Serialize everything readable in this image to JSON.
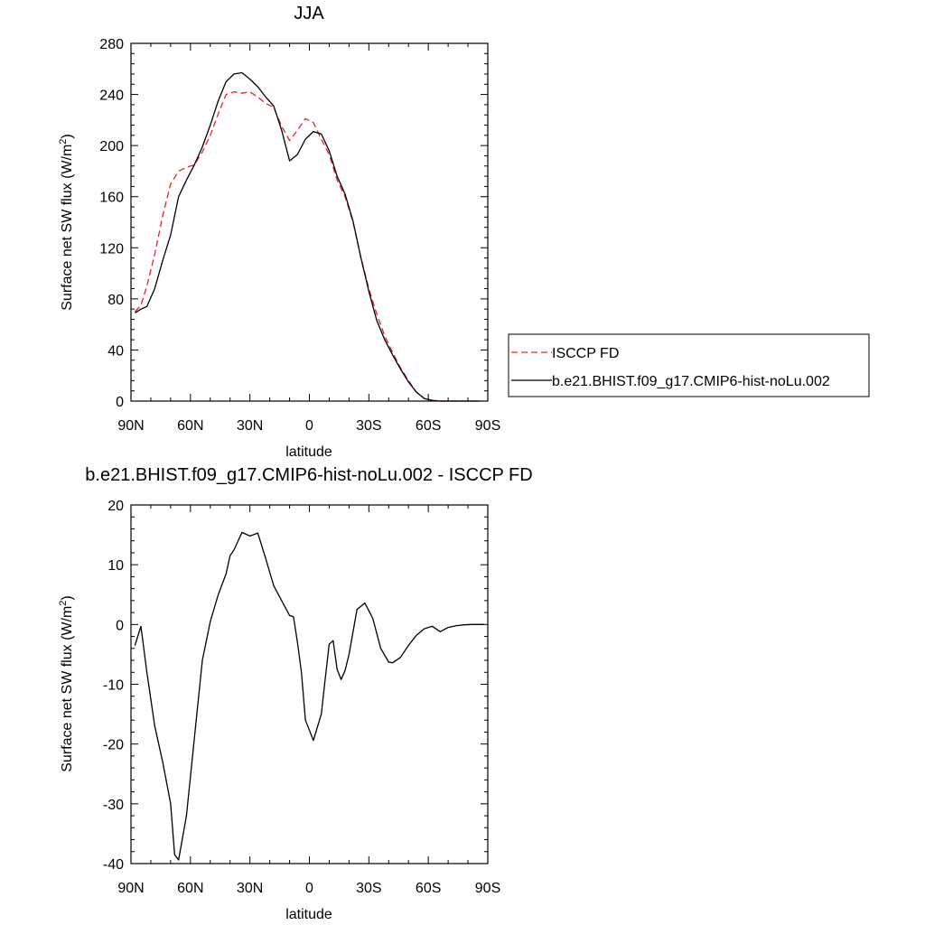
{
  "chart_data": [
    {
      "type": "line",
      "title": "JJA",
      "xlabel": "latitude",
      "ylabel": "Surface net SW flux (W/m",
      "ylabel_sup": "2",
      "ylabel_close": ")",
      "xlim": [
        90,
        -90
      ],
      "ylim": [
        0,
        280
      ],
      "xticks": [
        90,
        60,
        30,
        0,
        -30,
        -60,
        -90
      ],
      "xtick_labels": [
        "90N",
        "60N",
        "30N",
        "0",
        "30S",
        "60S",
        "90S"
      ],
      "yticks": [
        0,
        40,
        80,
        120,
        160,
        200,
        240,
        280
      ],
      "ytick_labels": [
        "0",
        "40",
        "80",
        "120",
        "160",
        "200",
        "240",
        "280"
      ],
      "legend_position": "right",
      "series": [
        {
          "name": "ISCCP FD",
          "color": "#e8202a",
          "dash": "dashed",
          "x": [
            88,
            85,
            82,
            78,
            74,
            70,
            66,
            62,
            58,
            54,
            50,
            46,
            42,
            38,
            34,
            30,
            26,
            22,
            18,
            14,
            10,
            6,
            2,
            -2,
            -6,
            -10,
            -14,
            -18,
            -22,
            -26,
            -30,
            -34,
            -38,
            -42,
            -46,
            -50,
            -54,
            -58,
            -62,
            -66,
            -70,
            -74,
            -78,
            -82,
            -86
          ],
          "y": [
            70,
            75,
            90,
            115,
            145,
            170,
            180,
            183,
            185,
            195,
            208,
            225,
            240,
            242,
            241,
            242,
            238,
            233,
            230,
            215,
            204,
            212,
            221,
            218,
            205,
            193,
            173,
            160,
            140,
            112,
            88,
            68,
            51,
            38,
            26,
            16,
            7,
            2,
            0.5,
            0,
            0,
            0,
            0,
            0,
            0
          ]
        },
        {
          "name": "b.e21.BHIST.f09_g17.CMIP6-hist-noLu.002",
          "color": "#000000",
          "dash": "solid",
          "x": [
            88,
            85,
            82,
            78,
            74,
            70,
            66,
            62,
            58,
            54,
            50,
            46,
            42,
            38,
            34,
            30,
            26,
            22,
            18,
            14,
            10,
            6,
            2,
            -2,
            -6,
            -10,
            -14,
            -18,
            -22,
            -26,
            -30,
            -34,
            -38,
            -42,
            -46,
            -50,
            -54,
            -58,
            -62,
            -66,
            -70,
            -74,
            -78,
            -82,
            -86
          ],
          "y": [
            69,
            72,
            74,
            88,
            110,
            130,
            160,
            173,
            185,
            199,
            216,
            235,
            250,
            256,
            257,
            252,
            246,
            238,
            231,
            212,
            188,
            193,
            205,
            211,
            209,
            196,
            176,
            162,
            141,
            112,
            86,
            63,
            48,
            36,
            25,
            15,
            7,
            2,
            0.5,
            0,
            0,
            0,
            0,
            0,
            0
          ]
        }
      ]
    },
    {
      "type": "line",
      "title": "b.e21.BHIST.f09_g17.CMIP6-hist-noLu.002 - ISCCP FD",
      "xlabel": "latitude",
      "ylabel": "Surface net SW flux (W/m",
      "ylabel_sup": "2",
      "ylabel_close": ")",
      "xlim": [
        90,
        -90
      ],
      "ylim": [
        -40,
        20
      ],
      "xticks": [
        90,
        60,
        30,
        0,
        -30,
        -60,
        -90
      ],
      "xtick_labels": [
        "90N",
        "60N",
        "30N",
        "0",
        "30S",
        "60S",
        "90S"
      ],
      "yticks": [
        -40,
        -30,
        -20,
        -10,
        0,
        10,
        20
      ],
      "ytick_labels": [
        "-40",
        "-30",
        "-20",
        "-10",
        "0",
        "10",
        "20"
      ],
      "series": [
        {
          "color": "#000000",
          "dash": "solid",
          "x": [
            88,
            85,
            82,
            78,
            74,
            70,
            68,
            66,
            62,
            58,
            54,
            50,
            46,
            42,
            40,
            38,
            34,
            30,
            26,
            22,
            18,
            14,
            10,
            8,
            6,
            4,
            2,
            -2,
            -6,
            -8,
            -10,
            -12,
            -14,
            -16,
            -18,
            -20,
            -24,
            -28,
            -32,
            -36,
            -40,
            -42,
            -46,
            -50,
            -54,
            -58,
            -62,
            -66,
            -70,
            -74,
            -78,
            -82,
            -86,
            -88
          ],
          "y": [
            -3.5,
            -0.3,
            -8,
            -17,
            -23,
            -30,
            -38.5,
            -39.4,
            -32,
            -19,
            -6,
            0.5,
            5,
            8.5,
            11.5,
            12.5,
            15.4,
            14.8,
            15.3,
            11,
            6.5,
            4,
            1.5,
            1.3,
            -3,
            -8,
            -16,
            -19.4,
            -15,
            -9,
            -3.3,
            -2.7,
            -7.5,
            -9.2,
            -7.7,
            -5,
            2.5,
            3.6,
            1,
            -4,
            -6.3,
            -6.4,
            -5.5,
            -3.5,
            -1.8,
            -0.7,
            -0.3,
            -1.2,
            -0.5,
            -0.2,
            -0.05,
            0,
            0,
            0
          ]
        }
      ]
    }
  ]
}
